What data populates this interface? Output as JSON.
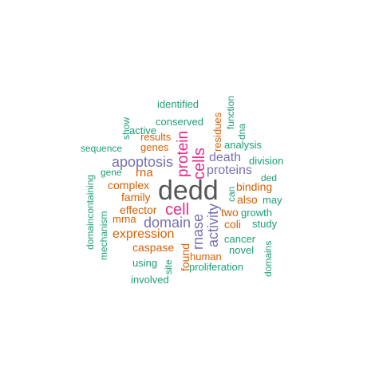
{
  "palette": {
    "gray": "#555555",
    "pink": "#e7298a",
    "purple": "#7570b3",
    "orange": "#d95f02",
    "teal": "#1b9e77"
  },
  "words": [
    {
      "text": "dedd",
      "color": "gray"
    },
    {
      "text": "cell",
      "color": "pink"
    },
    {
      "text": "cells",
      "color": "pink"
    },
    {
      "text": "protein",
      "color": "pink"
    },
    {
      "text": "rnase",
      "color": "purple"
    },
    {
      "text": "activity",
      "color": "purple"
    },
    {
      "text": "apoptosis",
      "color": "purple"
    },
    {
      "text": "domain",
      "color": "purple"
    },
    {
      "text": "proteins",
      "color": "purple"
    },
    {
      "text": "death",
      "color": "purple"
    },
    {
      "text": "expression",
      "color": "orange"
    },
    {
      "text": "rna",
      "color": "orange"
    },
    {
      "text": "complex",
      "color": "orange"
    },
    {
      "text": "family",
      "color": "orange"
    },
    {
      "text": "effector",
      "color": "orange"
    },
    {
      "text": "genes",
      "color": "orange"
    },
    {
      "text": "results",
      "color": "orange"
    },
    {
      "text": "mrna",
      "color": "orange"
    },
    {
      "text": "caspase",
      "color": "orange"
    },
    {
      "text": "found",
      "color": "orange"
    },
    {
      "text": "human",
      "color": "orange"
    },
    {
      "text": "two",
      "color": "orange"
    },
    {
      "text": "coli",
      "color": "orange"
    },
    {
      "text": "binding",
      "color": "orange"
    },
    {
      "text": "also",
      "color": "orange"
    },
    {
      "text": "residues",
      "color": "orange"
    },
    {
      "text": "identified",
      "color": "teal"
    },
    {
      "text": "conserved",
      "color": "teal"
    },
    {
      "text": "function",
      "color": "teal"
    },
    {
      "text": "dna",
      "color": "teal"
    },
    {
      "text": "show",
      "color": "teal"
    },
    {
      "text": "active",
      "color": "teal"
    },
    {
      "text": "analysis",
      "color": "teal"
    },
    {
      "text": "sequence",
      "color": "teal"
    },
    {
      "text": "gene",
      "color": "teal"
    },
    {
      "text": "division",
      "color": "teal"
    },
    {
      "text": "ded",
      "color": "teal"
    },
    {
      "text": "can",
      "color": "teal"
    },
    {
      "text": "may",
      "color": "teal"
    },
    {
      "text": "growth",
      "color": "teal"
    },
    {
      "text": "study",
      "color": "teal"
    },
    {
      "text": "domaincontaining",
      "color": "teal"
    },
    {
      "text": "mechanism",
      "color": "teal"
    },
    {
      "text": "cancer",
      "color": "teal"
    },
    {
      "text": "novel",
      "color": "teal"
    },
    {
      "text": "domains",
      "color": "teal"
    },
    {
      "text": "using",
      "color": "teal"
    },
    {
      "text": "site",
      "color": "teal"
    },
    {
      "text": "proliferation",
      "color": "teal"
    },
    {
      "text": "involved",
      "color": "teal"
    }
  ]
}
